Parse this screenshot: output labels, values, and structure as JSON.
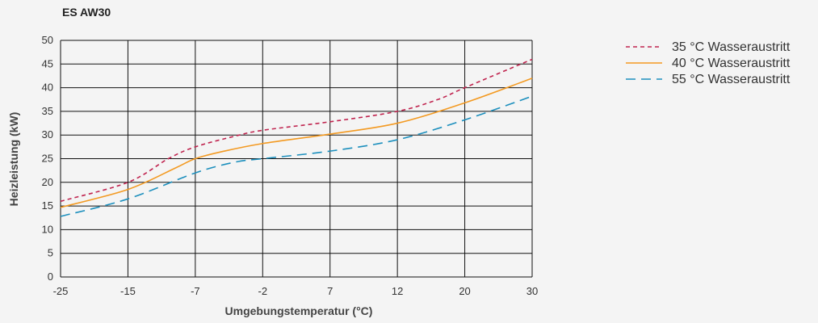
{
  "chart_data": {
    "type": "line",
    "title": "ES AW30",
    "xlabel": "Umgebungstemperatur (°C)",
    "ylabel": "Heizleistung (kW)",
    "categories": [
      "-25",
      "-15",
      "-7",
      "-2",
      "7",
      "12",
      "20",
      "30"
    ],
    "ylim": [
      0,
      50
    ],
    "yticks": [
      0,
      5,
      10,
      15,
      20,
      25,
      30,
      35,
      40,
      45,
      50
    ],
    "grid": true,
    "legend_position": "top-right",
    "series": [
      {
        "name": "35 °C Wasseraustritt",
        "color": "#c0244f",
        "dash": "short-dash",
        "points": [
          [
            0,
            16.0
          ],
          [
            1,
            20.0
          ],
          [
            1.6,
            25.0
          ],
          [
            2,
            27.5
          ],
          [
            2.6,
            29.8
          ],
          [
            3,
            31.0
          ],
          [
            4,
            32.8
          ],
          [
            5,
            35.0
          ],
          [
            5.6,
            37.5
          ],
          [
            6,
            40.0
          ],
          [
            7,
            46.0
          ]
        ]
      },
      {
        "name": "40 °C Wasseraustritt",
        "color": "#f39a22",
        "dash": "solid",
        "points": [
          [
            0,
            14.7
          ],
          [
            1,
            18.5
          ],
          [
            1.7,
            23.0
          ],
          [
            2,
            25.0
          ],
          [
            2.4,
            26.5
          ],
          [
            3,
            28.2
          ],
          [
            4,
            30.2
          ],
          [
            5,
            32.5
          ],
          [
            6,
            36.8
          ],
          [
            7,
            42.0
          ]
        ]
      },
      {
        "name": "55 °C Wasseraustritt",
        "color": "#1c8fbd",
        "dash": "long-dash",
        "points": [
          [
            0,
            12.8
          ],
          [
            1,
            16.5
          ],
          [
            2,
            22.0
          ],
          [
            2.6,
            24.3
          ],
          [
            3,
            25.0
          ],
          [
            4,
            26.6
          ],
          [
            5,
            29.0
          ],
          [
            6,
            33.2
          ],
          [
            7,
            38.2
          ]
        ]
      }
    ]
  }
}
